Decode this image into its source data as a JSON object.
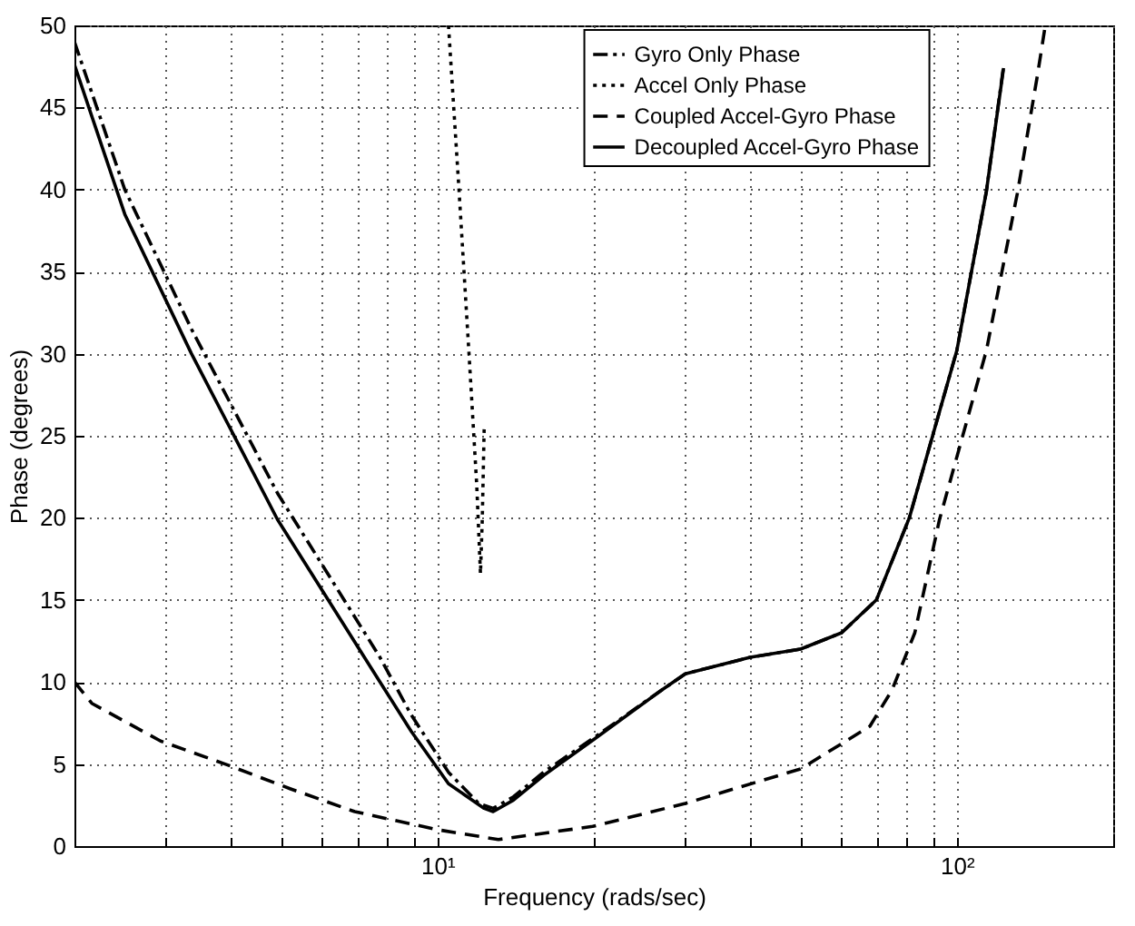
{
  "chart_data": {
    "type": "line",
    "xlabel": "Frequency (rads/sec)",
    "ylabel": "Phase (degrees)",
    "log": "x",
    "grid": true,
    "legend": "top right",
    "xlim": [
      2,
      200
    ],
    "xticks": [
      {
        "value": 2,
        "label": null
      },
      {
        "value": 3,
        "label": null
      },
      {
        "value": 4,
        "label": null
      },
      {
        "value": 5,
        "label": null
      },
      {
        "value": 6,
        "label": null
      },
      {
        "value": 7,
        "label": null
      },
      {
        "value": 8,
        "label": null
      },
      {
        "value": 9,
        "label": null
      },
      {
        "value": 10,
        "label": "10¹"
      },
      {
        "value": 20,
        "label": null
      },
      {
        "value": 30,
        "label": null
      },
      {
        "value": 40,
        "label": null
      },
      {
        "value": 50,
        "label": null
      },
      {
        "value": 60,
        "label": null
      },
      {
        "value": 70,
        "label": null
      },
      {
        "value": 80,
        "label": null
      },
      {
        "value": 90,
        "label": null
      },
      {
        "value": 100,
        "label": "10²"
      },
      {
        "value": 200,
        "label": null
      }
    ],
    "ylim": [
      0,
      50
    ],
    "yticks": [
      0,
      5,
      10,
      15,
      20,
      25,
      30,
      35,
      40,
      45,
      50
    ],
    "series": [
      {
        "name": "Gyro Only Phase",
        "color": "#000000",
        "line_style": "dashdot",
        "x": [
          2,
          2.5,
          3.36,
          4.92,
          7.75,
          8.9,
          10.5,
          12,
          12.8,
          14,
          16,
          20,
          27,
          30,
          40,
          50,
          60,
          70,
          81,
          100,
          114,
          123
        ],
        "values": [
          49,
          40,
          31.5,
          21.5,
          11.5,
          8,
          4.5,
          2.6,
          2.3,
          3,
          4.5,
          6.6,
          9.5,
          10.5,
          11.5,
          12,
          13,
          15,
          20,
          30.2,
          39.9,
          47.5
        ]
      },
      {
        "name": "Accel Only Phase",
        "color": "#000000",
        "line_style": "dotted",
        "x": [
          10.5,
          11,
          11.5,
          11.9,
          12.1,
          12.2,
          12.3
        ],
        "values": [
          50,
          40,
          30,
          22,
          16.6,
          20,
          25.5
        ]
      },
      {
        "name": "Coupled Accel-Gyro Phase",
        "color": "#000000",
        "line_style": "dashed",
        "x": [
          2,
          2.16,
          2.93,
          3.9,
          5.2,
          6.93,
          10,
          13.1,
          19.9,
          30,
          50,
          68,
          75,
          83,
          92.6,
          114,
          131,
          143,
          148
        ],
        "values": [
          10,
          8.7,
          6.4,
          5,
          3.5,
          2.1,
          1,
          0.4,
          1.2,
          2.6,
          4.7,
          7.3,
          9.5,
          13,
          19.9,
          30.2,
          39.9,
          47,
          50
        ]
      },
      {
        "name": "Decoupled Accel-Gyro Phase",
        "color": "#000000",
        "line_style": "solid",
        "x": [
          2,
          2.5,
          3.36,
          4.92,
          7.75,
          8.9,
          10.5,
          12.3,
          12.8,
          14,
          16,
          20,
          27,
          30,
          40,
          50,
          60,
          70,
          81,
          100,
          114,
          123
        ],
        "values": [
          47.6,
          38.5,
          30,
          19.9,
          10,
          7,
          3.8,
          2.3,
          2.1,
          2.8,
          4.3,
          6.5,
          9.5,
          10.5,
          11.5,
          12,
          13,
          15,
          20,
          30.2,
          39.9,
          47.4
        ]
      }
    ]
  }
}
